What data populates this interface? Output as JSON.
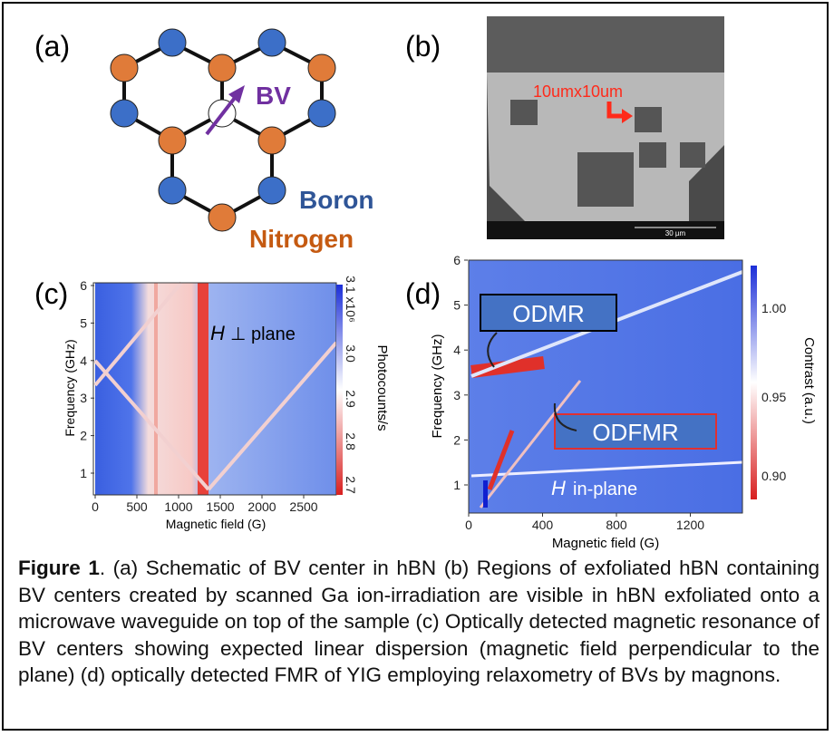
{
  "panel_a": {
    "label": "(a)",
    "defect": "BV",
    "species": [
      "Boron",
      "Nitrogen"
    ]
  },
  "panel_b": {
    "label": "(b)",
    "annotation": "10umx10um",
    "scale_bar": "30 µm"
  },
  "panel_c": {
    "label": "(c)",
    "x_label": "Magnetic field (G)",
    "y_label": "Frequency (GHz)",
    "x_ticks": [
      "0",
      "500",
      "1000",
      "1500",
      "2000",
      "2500"
    ],
    "y_ticks": [
      "1",
      "2",
      "3",
      "4",
      "5",
      "6"
    ],
    "colorbar_label": "Photocounts/s",
    "colorbar_ticks": [
      "3.1 x10⁶",
      "3.0",
      "2.9",
      "2.8",
      "2.7"
    ],
    "annotation_symbol": "H",
    "annotation_text": "⊥ plane"
  },
  "panel_d": {
    "label": "(d)",
    "x_label": "Magnetic field (G)",
    "y_label": "Frequency (GHz)",
    "x_ticks": [
      "0",
      "400",
      "800",
      "1200"
    ],
    "y_ticks": [
      "1",
      "2",
      "3",
      "4",
      "5",
      "6"
    ],
    "colorbar_label": "Contrast (a.u.)",
    "colorbar_ticks": [
      "1.00",
      "0.95",
      "0.90"
    ],
    "boxes": [
      "ODMR",
      "ODFMR"
    ],
    "annotation_symbol": "H",
    "annotation_text": "in-plane"
  },
  "caption": {
    "label": "Figure 1",
    "text": ". (a) Schematic of BV center in hBN (b) Regions of exfoliated hBN containing BV centers created by scanned Ga ion-irradiation are visible in hBN exfoliated onto a microwave waveguide on top of the sample (c) Optically detected magnetic resonance of BV centers showing expected linear dispersion (magnetic field perpendicular to the plane) (d) optically detected FMR of YIG employing relaxometry of BVs by magnons."
  }
}
